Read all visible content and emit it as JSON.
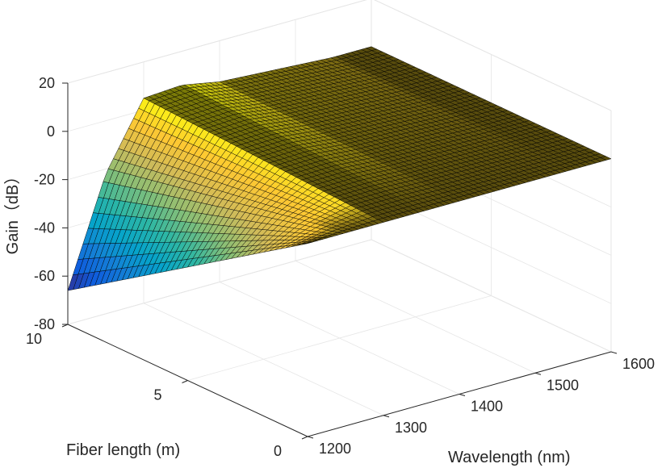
{
  "chart_data": {
    "type": "surface",
    "title": "",
    "xlabel": "Wavelength (nm)",
    "ylabel": "Fiber length (m)",
    "zlabel": "Gain（dB）",
    "xlim": [
      1200,
      1600
    ],
    "ylim": [
      0,
      10
    ],
    "zlim": [
      -80,
      20
    ],
    "xticks": [
      1200,
      1300,
      1400,
      1500,
      1600
    ],
    "yticks": [
      0,
      5,
      10
    ],
    "zticks": [
      -80,
      -60,
      -40,
      -20,
      0,
      20
    ],
    "xtick_labels": [
      "1200",
      "1300",
      "1400",
      "1500",
      "1600"
    ],
    "ytick_labels": [
      "0",
      "5",
      "10"
    ],
    "ztick_labels": [
      "-80",
      "-60",
      "-40",
      "-20",
      "0",
      "20"
    ],
    "colormap": [
      "#352a87",
      "#0f5cdd",
      "#1481d6",
      "#06a4ca",
      "#2eb7a4",
      "#87bf77",
      "#d1bb59",
      "#fec832",
      "#f9fb0e"
    ],
    "shading": "faceted black edges, dark brown low-slope regions",
    "grid": true,
    "box": true,
    "view": "azimuth about -50, elevation about 30 (isometric-like, wavelength axis to the right, fiber length axis to the left)",
    "wavelength_nm": [
      1200,
      1250,
      1300,
      1350,
      1400,
      1450,
      1500,
      1550,
      1600
    ],
    "fiber_length_m": [
      0,
      1,
      2,
      3,
      4,
      5,
      6,
      7,
      8,
      9,
      10
    ],
    "gain_dB": [
      [
        0,
        0,
        0,
        0,
        0,
        0,
        0,
        0,
        0
      ],
      [
        -6.6,
        -2.2,
        0.5,
        0.6,
        0.3,
        0.2,
        0.1,
        0,
        0
      ],
      [
        -13.2,
        -4.4,
        1.0,
        1.2,
        0.6,
        0.4,
        0.2,
        0,
        0
      ],
      [
        -19.8,
        -6.6,
        1.5,
        1.8,
        0.9,
        0.6,
        0.3,
        0,
        0
      ],
      [
        -26.4,
        -8.8,
        2.0,
        2.4,
        1.2,
        0.8,
        0.4,
        0,
        0
      ],
      [
        -33.0,
        -11.0,
        2.5,
        3.0,
        1.5,
        1.0,
        0.5,
        0,
        0
      ],
      [
        -39.6,
        -13.2,
        3.0,
        3.6,
        1.8,
        1.2,
        0.6,
        0,
        0
      ],
      [
        -46.2,
        -15.4,
        3.5,
        4.2,
        2.1,
        1.4,
        0.7,
        0,
        0
      ],
      [
        -52.8,
        -17.6,
        4.0,
        4.8,
        2.4,
        1.6,
        0.8,
        0,
        0
      ],
      [
        -59.4,
        -19.8,
        4.5,
        5.4,
        2.7,
        1.8,
        0.9,
        0,
        0
      ],
      [
        -66.0,
        -22.0,
        5.0,
        6.0,
        3.0,
        2.0,
        1.0,
        0,
        0
      ]
    ],
    "annotations": []
  }
}
